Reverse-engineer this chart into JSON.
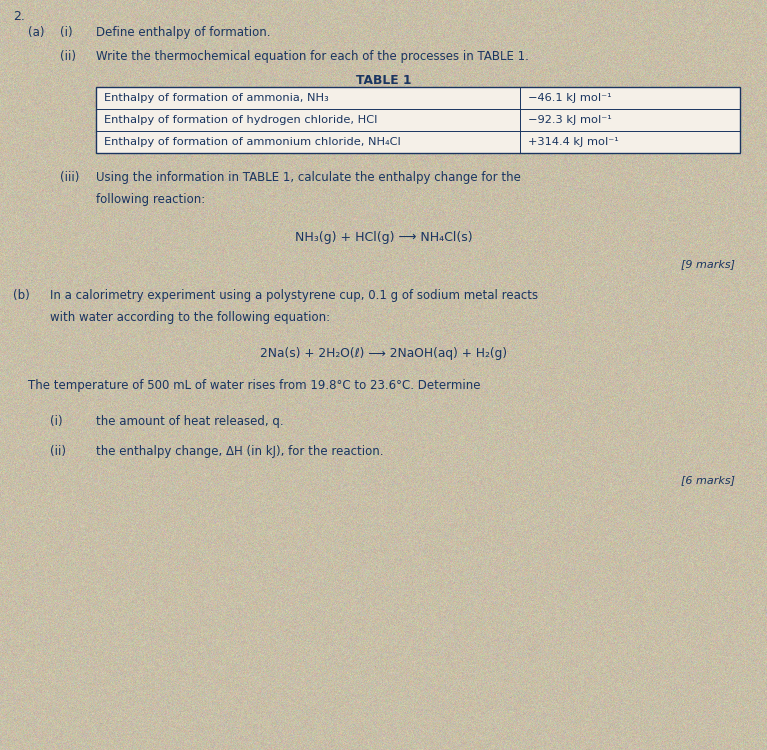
{
  "bg_color": "#c8bfa8",
  "text_color": "#1a3560",
  "question_number": "2.",
  "part_a_label": "(a)",
  "part_ai_label": "(i)",
  "part_ai_text": "Define enthalpy of formation.",
  "part_aii_label": "(ii)",
  "part_aii_text": "Write the thermochemical equation for each of the processes in TABLE 1.",
  "table_title": "TABLE 1",
  "table_row1_left": "Enthalpy of formation of ammonia, NH₃",
  "table_row1_right": "−46.1 kJ mol⁻¹",
  "table_row2_left": "Enthalpy of formation of hydrogen chloride, HCl",
  "table_row2_right": "−92.3 kJ mol⁻¹",
  "table_row3_left": "Enthalpy of formation of ammonium chloride, NH₄Cl",
  "table_row3_right": "+314.4 kJ mol⁻¹",
  "part_aiii_label": "(iii)",
  "part_aiii_line1": "Using the information in TABLE 1, calculate the enthalpy change for the",
  "part_aiii_line2": "following reaction:",
  "reaction_a_left": "NH₃(g) + HCl(g)",
  "reaction_a_arrow": " ⟶ ",
  "reaction_a_right": "NH₄Cl(s)",
  "marks_a": "[9 marks]",
  "part_b_label": "(b)",
  "part_b_line1": "In a calorimetry experiment using a polystyrene cup, 0.1 g of sodium metal reacts",
  "part_b_line2": "with water according to the following equation:",
  "reaction_b": "2Na(s) + 2H₂O(ℓ) ⟶ 2NaOH(aq) + H₂(g)",
  "temp_text": "The temperature of 500 mL of water rises from 19.8°C to 23.6°C. Determine",
  "part_bi_label": "(i)",
  "part_bi_text": "the amount of heat released, q.",
  "part_bii_label": "(ii)",
  "part_bii_text": "the enthalpy change, ΔH (in kJ), for the reaction.",
  "marks_b": "[6 marks]",
  "table_border_color": "#1a3560",
  "table_bg": "#f5f0e8"
}
